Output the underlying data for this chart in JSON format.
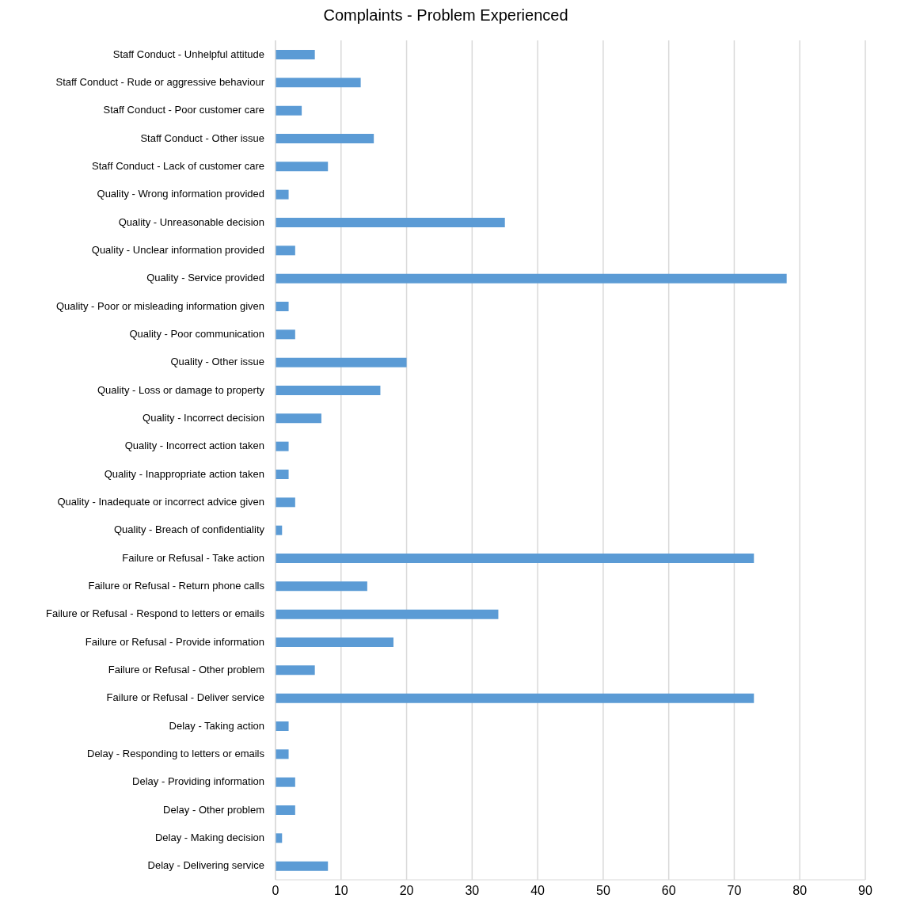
{
  "chart_data": {
    "type": "bar",
    "orientation": "horizontal",
    "title": "Complaints - Problem Experienced",
    "categories": [
      "Staff Conduct - Unhelpful attitude",
      "Staff Conduct - Rude or aggressive behaviour",
      "Staff Conduct - Poor customer care",
      "Staff Conduct - Other issue",
      "Staff Conduct - Lack of customer care",
      "Quality - Wrong information provided",
      "Quality - Unreasonable decision",
      "Quality - Unclear information provided",
      "Quality - Service provided",
      "Quality - Poor or misleading information given",
      "Quality - Poor communication",
      "Quality - Other issue",
      "Quality - Loss or damage to property",
      "Quality - Incorrect decision",
      "Quality - Incorrect action taken",
      "Quality - Inappropriate action taken",
      "Quality - Inadequate or incorrect advice given",
      "Quality - Breach of confidentiality",
      "Failure or Refusal - Take action",
      "Failure or Refusal - Return phone calls",
      "Failure or Refusal - Respond to letters or emails",
      "Failure or Refusal - Provide information",
      "Failure or Refusal - Other problem",
      "Failure or Refusal - Deliver service",
      "Delay - Taking action",
      "Delay - Responding to letters or emails",
      "Delay - Providing information",
      "Delay - Other problem",
      "Delay - Making decision",
      "Delay - Delivering service"
    ],
    "values": [
      6,
      13,
      4,
      15,
      8,
      2,
      35,
      3,
      78,
      2,
      3,
      20,
      16,
      7,
      2,
      2,
      3,
      1,
      73,
      14,
      34,
      18,
      6,
      73,
      2,
      2,
      3,
      3,
      1,
      8
    ],
    "color": "#5b9bd5",
    "xlim": [
      0,
      90
    ],
    "xticks": [
      0,
      10,
      20,
      30,
      40,
      50,
      60,
      70,
      80,
      90
    ],
    "grid": "x"
  }
}
